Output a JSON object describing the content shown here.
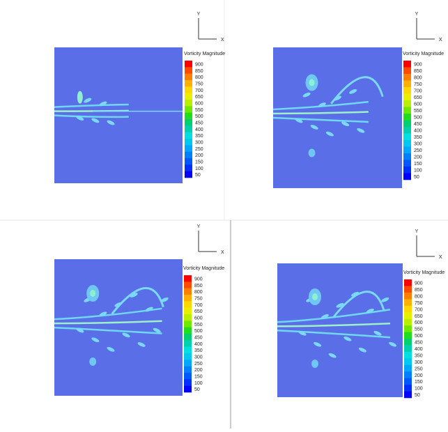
{
  "panels": [
    {
      "axis_y": "Y",
      "axis_x": "X",
      "legend_title": "Vorticity Magnitude",
      "legend_levels": [
        900,
        850,
        800,
        750,
        700,
        650,
        600,
        550,
        500,
        450,
        400,
        350,
        300,
        250,
        200,
        150,
        100,
        50
      ]
    },
    {
      "axis_y": "Y",
      "axis_x": "X",
      "legend_title": "Vorticity Magnitude",
      "legend_levels": [
        900,
        850,
        800,
        750,
        700,
        650,
        600,
        550,
        500,
        450,
        400,
        350,
        300,
        250,
        200,
        150,
        100,
        50
      ]
    },
    {
      "axis_y": "Y",
      "axis_x": "X",
      "legend_title": "Vorticity Magnitude",
      "legend_levels": [
        900,
        850,
        800,
        750,
        700,
        650,
        600,
        550,
        500,
        450,
        400,
        350,
        300,
        250,
        200,
        150,
        100,
        50
      ]
    },
    {
      "axis_y": "Y",
      "axis_x": "X",
      "legend_title": "Vorticity Magnitude",
      "legend_levels": [
        900,
        850,
        800,
        750,
        700,
        650,
        600,
        550,
        500,
        450,
        400,
        350,
        300,
        250,
        200,
        150,
        100,
        50
      ]
    }
  ]
}
